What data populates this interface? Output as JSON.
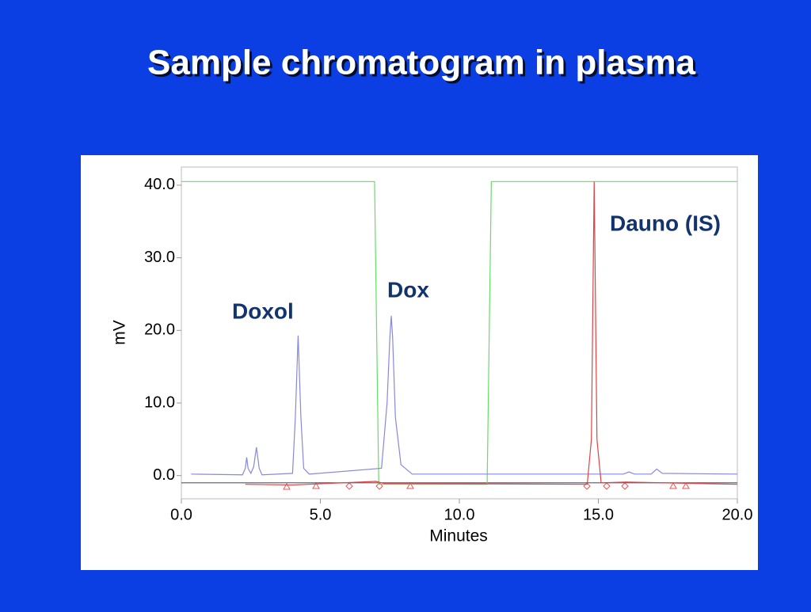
{
  "chart_data": {
    "type": "line",
    "title": "Sample chromatogram in plasma",
    "xlabel": "Minutes",
    "ylabel": "mV",
    "annotations": [
      "Doxol",
      "Dox",
      "Dauno (IS)"
    ],
    "xlim": [
      0,
      20
    ],
    "ylim": [
      -3.2,
      42.5
    ],
    "xticks": [
      {
        "value": 0,
        "label": "0.0"
      },
      {
        "value": 5,
        "label": "5.0"
      },
      {
        "value": 10,
        "label": "10.0"
      },
      {
        "value": 15,
        "label": "15.0"
      },
      {
        "value": 20,
        "label": "20.0"
      }
    ],
    "yticks": [
      {
        "value": 0,
        "label": "0.0"
      },
      {
        "value": 10,
        "label": "10.0"
      },
      {
        "value": 20,
        "label": "20.0"
      },
      {
        "value": 30,
        "label": "30.0"
      },
      {
        "value": 40,
        "label": "40.0"
      }
    ],
    "series": [
      {
        "color": "#555577",
        "x": [
          0,
          20
        ],
        "values": [
          -1.0,
          -1.0
        ]
      },
      {
        "color": "#66dd66",
        "x": [
          0,
          6.95,
          7.1,
          11.0,
          11.15,
          20
        ],
        "values": [
          40.5,
          40.5,
          -1.2,
          -1.2,
          40.5,
          40.5
        ]
      },
      {
        "color": "#8888dd",
        "x": [
          0.35,
          2.2,
          2.3,
          2.35,
          2.4,
          2.5,
          2.6,
          2.7,
          2.8,
          2.9,
          4.0,
          4.1,
          4.2,
          4.3,
          4.4,
          4.6,
          7.2,
          7.4,
          7.5,
          7.55,
          7.6,
          7.7,
          7.9,
          8.3,
          15.9,
          16.1,
          16.3,
          16.9,
          17.1,
          17.3,
          20
        ],
        "values": [
          0.2,
          0.1,
          1.0,
          2.5,
          1.0,
          0.3,
          1.2,
          3.9,
          1.0,
          0.1,
          0.3,
          8,
          19.3,
          8,
          1.0,
          0.2,
          1.0,
          10,
          19,
          22,
          19,
          8,
          1.5,
          0.2,
          0.2,
          0.5,
          0.2,
          0.2,
          0.9,
          0.3,
          0.2
        ]
      },
      {
        "color": "#dd4444",
        "x": [
          2.3,
          4.0,
          7.0,
          7.3,
          14.6,
          14.75,
          14.85,
          14.95,
          15.1,
          16.0,
          20
        ],
        "values": [
          -1.2,
          -1.3,
          -0.8,
          -1.1,
          -1.2,
          5,
          40.5,
          5,
          -1.0,
          -0.9,
          -1.2
        ]
      }
    ]
  }
}
